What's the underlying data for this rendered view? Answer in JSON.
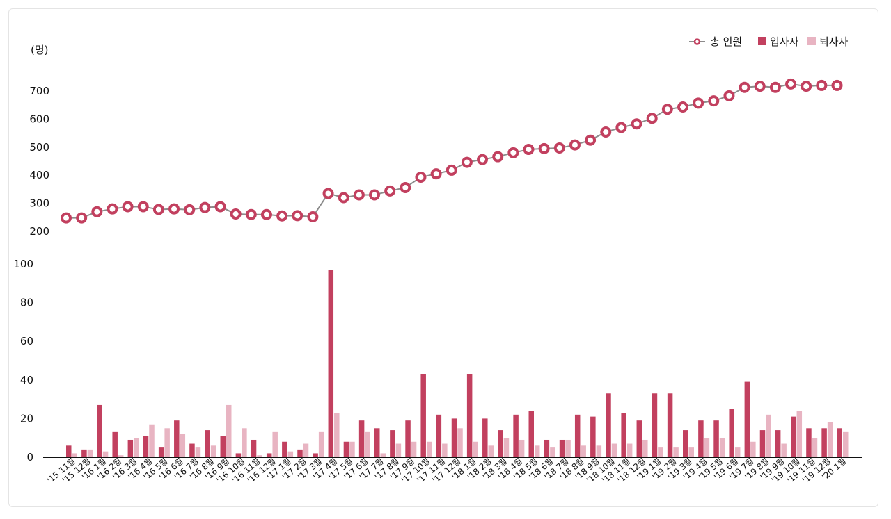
{
  "chart_data": {
    "type": "bar+line",
    "unit_label": "(명)",
    "legend": {
      "placement": "top-right",
      "entries": [
        {
          "name": "총 인원",
          "color": "#c2405f",
          "kind": "line-marker"
        },
        {
          "name": "입사자",
          "color": "#c2405f",
          "kind": "bar"
        },
        {
          "name": "퇴사자",
          "color": "#e8b4c2",
          "kind": "bar"
        }
      ]
    },
    "categories": [
      "'15 11월",
      "'15 12월",
      "'16 1월",
      "'16 2월",
      "'16 3월",
      "'16 4월",
      "'16 5월",
      "'16 6월",
      "'16 7월",
      "'16 8월",
      "'16 9월",
      "'16 10월",
      "'16 11월",
      "'16 12월",
      "'17 1월",
      "'17 2월",
      "'17 3월",
      "'17 4월",
      "'17 5월",
      "'17 6월",
      "'17 7월",
      "'17 8월",
      "'17 9월",
      "'17 10월",
      "'17 11월",
      "'17 12월",
      "'18 1월",
      "'18 2월",
      "'18 3월",
      "'18 4월",
      "'18 5월",
      "'18 6월",
      "'18 7월",
      "'18 8월",
      "'18 9월",
      "'18 10월",
      "'18 11월",
      "'18 12월",
      "'19 1월",
      "'19 2월",
      "'19 3월",
      "'19 4월",
      "'19 5월",
      "'19 6월",
      "'19 7월",
      "'19 8월",
      "'19 9월",
      "'19 10월",
      "'19 11월",
      "'19 12월",
      "'20 1월"
    ],
    "series": [
      {
        "name": "총 인원",
        "axis": "upper",
        "values": [
          248,
          248,
          270,
          280,
          288,
          288,
          278,
          280,
          277,
          285,
          288,
          262,
          260,
          260,
          255,
          256,
          252,
          335,
          320,
          330,
          330,
          344,
          356,
          393,
          405,
          418,
          446,
          456,
          466,
          480,
          492,
          495,
          497,
          508,
          525,
          554,
          570,
          583,
          603,
          635,
          643,
          657,
          665,
          683,
          713,
          717,
          713,
          725,
          717,
          720,
          720
        ]
      },
      {
        "name": "입사자",
        "axis": "lower",
        "values": [
          6,
          4,
          27,
          13,
          9,
          11,
          5,
          19,
          7,
          14,
          11,
          2,
          9,
          2,
          8,
          4,
          2,
          97,
          8,
          19,
          15,
          14,
          19,
          43,
          22,
          20,
          43,
          20,
          14,
          22,
          24,
          9,
          9,
          22,
          21,
          33,
          23,
          19,
          33,
          33,
          14,
          19,
          19,
          25,
          39,
          14,
          14,
          21,
          15,
          15,
          15
        ]
      },
      {
        "name": "퇴사자",
        "axis": "lower",
        "values": [
          2,
          4,
          3,
          1,
          10,
          17,
          15,
          12,
          5,
          6,
          27,
          15,
          1,
          13,
          3,
          7,
          13,
          23,
          8,
          13,
          2,
          7,
          8,
          8,
          7,
          15,
          8,
          6,
          10,
          9,
          6,
          5,
          9,
          6,
          6,
          7,
          7,
          9,
          5,
          5,
          5,
          10,
          10,
          5,
          8,
          22,
          7,
          24,
          10,
          18,
          13
        ]
      }
    ],
    "upper_axis": {
      "ticks": [
        200,
        300,
        400,
        500,
        600,
        700
      ],
      "range": [
        200,
        700
      ]
    },
    "lower_axis": {
      "ticks": [
        0,
        20,
        40,
        60,
        80,
        100
      ],
      "range": [
        0,
        100
      ]
    },
    "grid": false
  }
}
